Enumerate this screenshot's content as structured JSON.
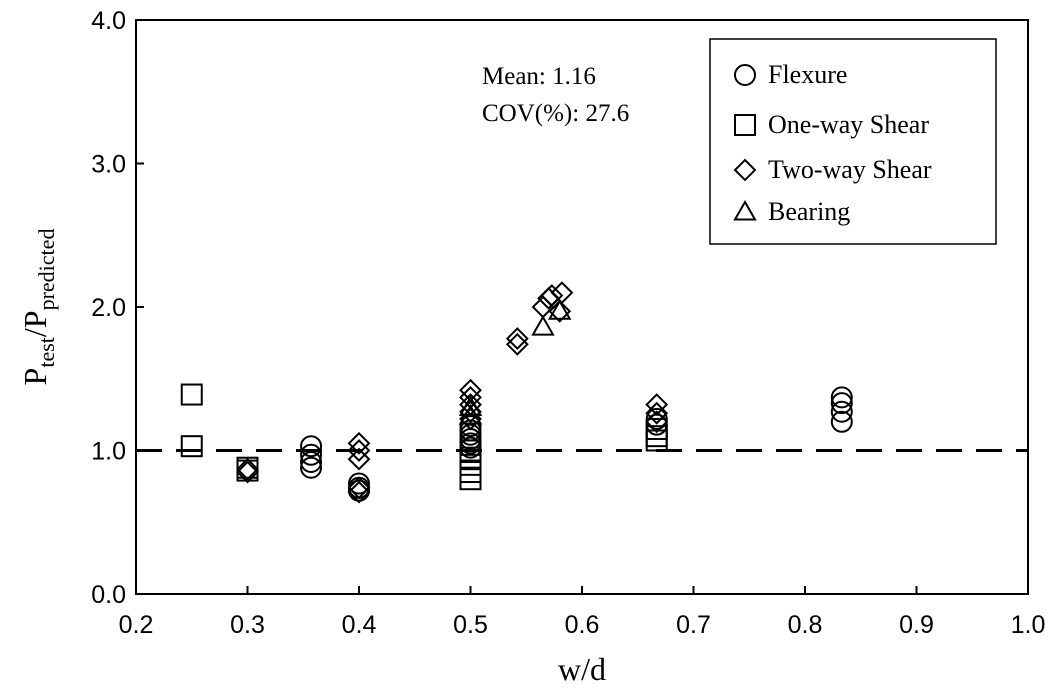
{
  "chart_data": {
    "type": "scatter",
    "xlabel": "w/d",
    "ylabel_main": "P",
    "ylabel_sub1": "test",
    "ylabel_sep": "/P",
    "ylabel_sub2": "predicted",
    "xlim": [
      0.2,
      1.0
    ],
    "ylim": [
      0.0,
      4.0
    ],
    "x_ticks": [
      "0.2",
      "0.3",
      "0.4",
      "0.5",
      "0.6",
      "0.7",
      "0.8",
      "0.9",
      "1.0"
    ],
    "y_ticks": [
      "0.0",
      "1.0",
      "2.0",
      "3.0",
      "4.0"
    ],
    "grid": false,
    "legend_position": "top-right",
    "reference_line": {
      "y": 1.0,
      "style": "dashed"
    },
    "annotations": [
      "Mean: 1.16",
      "COV(%): 27.6"
    ],
    "series": [
      {
        "name": "Flexure",
        "marker": "circle",
        "points": [
          [
            0.357,
            1.03
          ],
          [
            0.357,
            0.97
          ],
          [
            0.357,
            0.92
          ],
          [
            0.357,
            0.88
          ],
          [
            0.4,
            0.77
          ],
          [
            0.4,
            0.74
          ],
          [
            0.4,
            0.72
          ],
          [
            0.5,
            1.17
          ],
          [
            0.5,
            1.14
          ],
          [
            0.5,
            1.11
          ],
          [
            0.5,
            1.08
          ],
          [
            0.5,
            1.05
          ],
          [
            0.5,
            1.02
          ],
          [
            0.667,
            1.22
          ],
          [
            0.667,
            1.18
          ],
          [
            0.833,
            1.37
          ],
          [
            0.833,
            1.33
          ],
          [
            0.833,
            1.27
          ],
          [
            0.833,
            1.2
          ]
        ]
      },
      {
        "name": "One-way Shear",
        "marker": "square",
        "points": [
          [
            0.25,
            1.39
          ],
          [
            0.25,
            1.03
          ],
          [
            0.3,
            0.88
          ],
          [
            0.3,
            0.86
          ],
          [
            0.5,
            1.0
          ],
          [
            0.5,
            0.95
          ],
          [
            0.5,
            0.9
          ],
          [
            0.5,
            0.85
          ],
          [
            0.5,
            0.8
          ],
          [
            0.667,
            1.15
          ],
          [
            0.667,
            1.1
          ],
          [
            0.667,
            1.07
          ]
        ]
      },
      {
        "name": "Two-way Shear",
        "marker": "diamond",
        "points": [
          [
            0.3,
            0.87
          ],
          [
            0.3,
            0.85
          ],
          [
            0.4,
            1.05
          ],
          [
            0.4,
            1.0
          ],
          [
            0.4,
            0.94
          ],
          [
            0.4,
            0.74
          ],
          [
            0.4,
            0.71
          ],
          [
            0.5,
            1.42
          ],
          [
            0.5,
            1.37
          ],
          [
            0.5,
            1.32
          ],
          [
            0.5,
            1.27
          ],
          [
            0.5,
            1.22
          ],
          [
            0.542,
            1.78
          ],
          [
            0.542,
            1.74
          ],
          [
            0.565,
            2.0
          ],
          [
            0.57,
            2.06
          ],
          [
            0.573,
            2.08
          ],
          [
            0.58,
            1.97
          ],
          [
            0.582,
            2.1
          ],
          [
            0.667,
            1.32
          ],
          [
            0.667,
            1.26
          ],
          [
            0.667,
            1.2
          ]
        ]
      },
      {
        "name": "Bearing",
        "marker": "triangle",
        "points": [
          [
            0.5,
            1.3
          ],
          [
            0.5,
            1.24
          ],
          [
            0.565,
            1.86
          ],
          [
            0.58,
            1.97
          ]
        ]
      }
    ]
  }
}
